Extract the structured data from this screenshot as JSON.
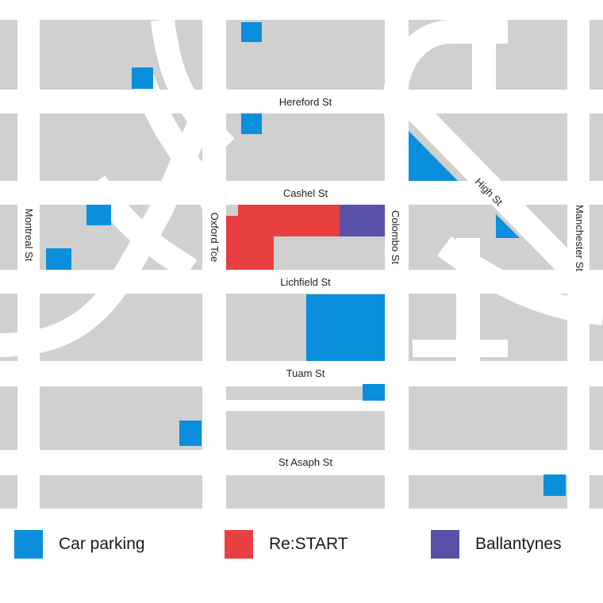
{
  "colors": {
    "block": "#d0d0d0",
    "road": "#ffffff",
    "car_parking": "#0a8fdc",
    "restart": "#e84040",
    "ballantynes": "#5a50a8"
  },
  "streets": {
    "hereford": "Hereford St",
    "cashel": "Cashel St",
    "lichfield": "Lichfield St",
    "tuam": "Tuam St",
    "st_asaph": "St Asaph St",
    "montreal": "Montreal St",
    "oxford": "Oxford Tce",
    "colombo": "Colombo St",
    "high": "High St",
    "manchester": "Manchester St"
  },
  "legend": {
    "car_parking": "Car parking",
    "restart": "Re:START",
    "ballantynes": "Ballantynes"
  }
}
